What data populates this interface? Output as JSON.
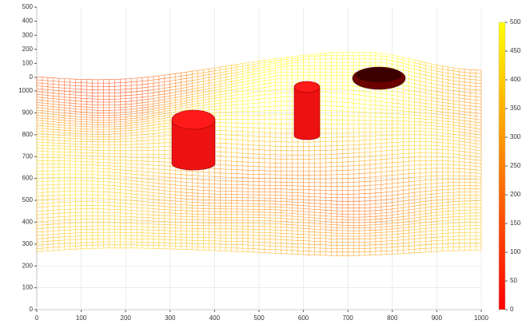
{
  "chart_data": {
    "type": "mesh",
    "xlim": [
      0,
      1000
    ],
    "xticks": [
      0,
      100,
      200,
      300,
      400,
      500,
      600,
      700,
      800,
      900,
      1000
    ],
    "ylim": [
      0,
      1000
    ],
    "yticks": [
      0,
      100,
      200,
      300,
      400,
      500,
      600,
      700,
      800,
      900,
      1000
    ],
    "zlim": [
      0,
      500
    ],
    "zticks": [
      0,
      100,
      200,
      300,
      400,
      500
    ],
    "grid": true,
    "colormap": [
      "#ff0000",
      "#ffff00"
    ],
    "colorbar": {
      "lim": [
        0,
        500
      ],
      "ticks": [
        0,
        50,
        100,
        150,
        200,
        250,
        300,
        350,
        400,
        450,
        500
      ]
    }
  }
}
